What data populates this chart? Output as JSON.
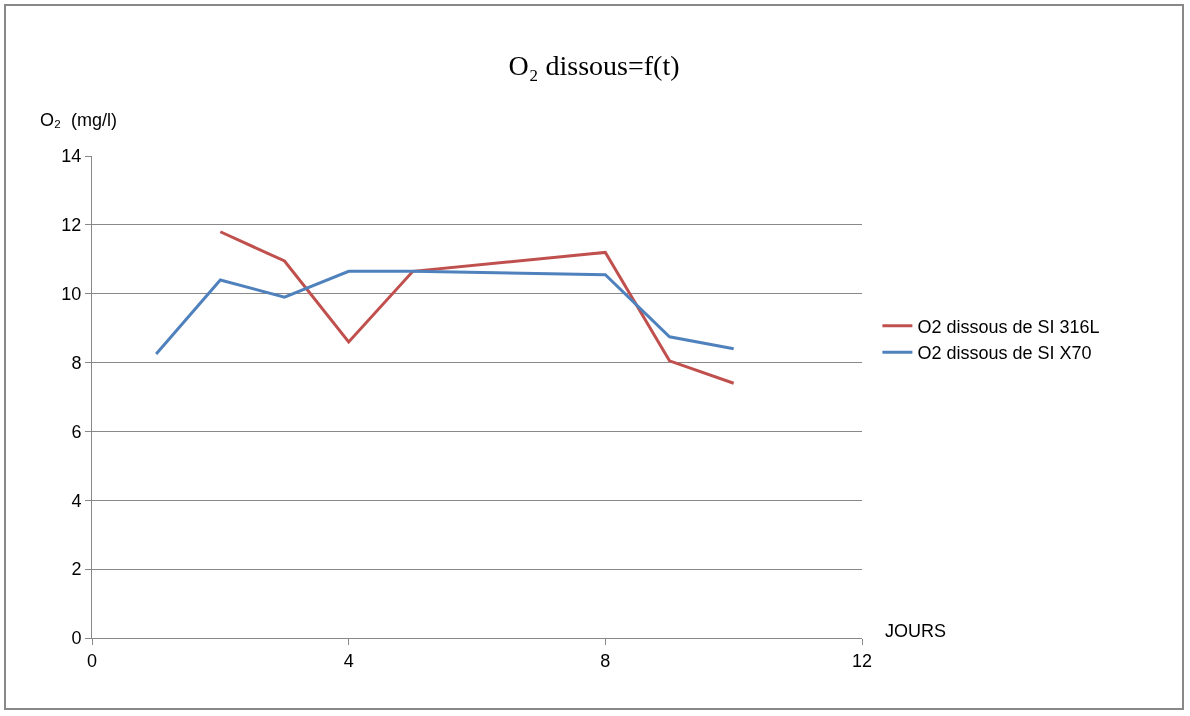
{
  "chart_data": {
    "type": "line",
    "title": "O₂ dissous=f(t)",
    "ylabel": "O₂  (mg/l)",
    "xlabel": "JOURS",
    "x": [
      1,
      2,
      3,
      4,
      5,
      8,
      9,
      10
    ],
    "series": [
      {
        "name": "O2 dissous de SI 316L",
        "color": "#c0504d",
        "values": [
          null,
          11.8,
          10.95,
          8.6,
          10.65,
          11.2,
          8.05,
          7.4
        ]
      },
      {
        "name": "O2 dissous de SI X70",
        "color": "#4f81bd",
        "values": [
          8.25,
          10.4,
          9.9,
          10.65,
          10.65,
          10.55,
          8.75,
          8.4
        ]
      }
    ],
    "xlim": [
      0,
      12
    ],
    "xticks": [
      0,
      4,
      8,
      12
    ],
    "ylim": [
      0,
      14
    ],
    "yticks": [
      0,
      2,
      4,
      6,
      8,
      10,
      12,
      14
    ],
    "grid": "y",
    "legend": "right",
    "marker": "none",
    "line_style": "solid"
  }
}
